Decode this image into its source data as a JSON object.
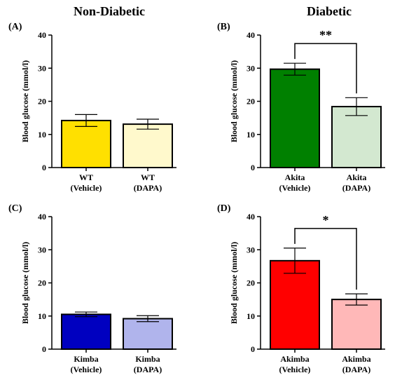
{
  "column_titles": {
    "left": "Non-Diabetic",
    "right": "Diabetic"
  },
  "chart_data": [
    {
      "panel": "(A)",
      "type": "bar",
      "ylabel": "Blood glucose (mmol/l)",
      "ylim": [
        0,
        40
      ],
      "yticks": [
        0,
        10,
        20,
        30,
        40
      ],
      "categories": [
        [
          "WT",
          "(Vehicle)"
        ],
        [
          "WT",
          "(DAPA)"
        ]
      ],
      "values": [
        14.2,
        13.1
      ],
      "errors": [
        1.8,
        1.5
      ],
      "colors": [
        "#FFE000",
        "#FFF9CC"
      ],
      "significance": null
    },
    {
      "panel": "(B)",
      "type": "bar",
      "ylabel": "Blood glucose (mmol/l)",
      "ylim": [
        0,
        40
      ],
      "yticks": [
        0,
        10,
        20,
        30,
        40
      ],
      "categories": [
        [
          "Akita",
          "(Vehicle)"
        ],
        [
          "Akita",
          "(DAPA)"
        ]
      ],
      "values": [
        29.7,
        18.4
      ],
      "errors": [
        1.8,
        2.7
      ],
      "colors": [
        "#008000",
        "#D3E8D0"
      ],
      "significance": "**"
    },
    {
      "panel": "(C)",
      "type": "bar",
      "ylabel": "Blood glucose (mmol/l)",
      "ylim": [
        0,
        40
      ],
      "yticks": [
        0,
        10,
        20,
        30,
        40
      ],
      "categories": [
        [
          "Kimba",
          "(Vehicle)"
        ],
        [
          "Kimba",
          "(DAPA)"
        ]
      ],
      "values": [
        10.5,
        9.2
      ],
      "errors": [
        0.7,
        0.9
      ],
      "colors": [
        "#0000C0",
        "#B0B4EC"
      ],
      "significance": null
    },
    {
      "panel": "(D)",
      "type": "bar",
      "ylabel": "Blood glucose (mmol/l)",
      "ylim": [
        0,
        40
      ],
      "yticks": [
        0,
        10,
        20,
        30,
        40
      ],
      "categories": [
        [
          "Akimba",
          "(Vehicle)"
        ],
        [
          "Akimba",
          "(DAPA)"
        ]
      ],
      "values": [
        26.7,
        15.0
      ],
      "errors": [
        3.8,
        1.7
      ],
      "colors": [
        "#FF0000",
        "#FFB8B8"
      ],
      "significance": "*"
    }
  ]
}
